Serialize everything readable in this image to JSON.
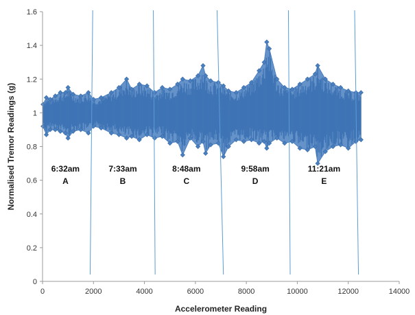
{
  "chart_data": {
    "type": "scatter",
    "title": "",
    "xlabel": "Accelerometer Reading",
    "ylabel": "Normalised Tremor Readings (g)",
    "xlim": [
      0,
      14000
    ],
    "ylim": [
      0,
      1.6
    ],
    "x_ticks": [
      0,
      2000,
      4000,
      6000,
      8000,
      10000,
      12000,
      14000
    ],
    "x_tick_labels": [
      "0",
      "2000",
      "4000",
      "6000",
      "8000",
      "10000",
      "12000",
      "14000"
    ],
    "y_ticks": [
      0,
      0.2,
      0.4,
      0.6,
      0.8,
      1.0,
      1.2,
      1.4,
      1.6
    ],
    "y_tick_labels": [
      "0",
      "0.2",
      "0.4",
      "0.6",
      "0.8",
      "1",
      "1.2",
      "1.4",
      "1.6"
    ],
    "grid": false,
    "series_color": "#4a7fbf",
    "divider_color": "#5b9bd5",
    "series": [
      {
        "x": [
          20,
          150,
          300,
          500,
          700,
          900,
          1000,
          1200,
          1500,
          1800,
          2000,
          2300,
          2700,
          3000,
          3300,
          3500,
          3800,
          4100,
          4400,
          4700,
          5000,
          5300,
          5500,
          5800,
          6100,
          6300,
          6400,
          6600,
          6900,
          7100,
          7300,
          7600,
          7900,
          8200,
          8500,
          8700,
          8800,
          8900,
          9200,
          9500,
          9800,
          10100,
          10400,
          10700,
          10800,
          11100,
          11400,
          11700,
          12000,
          12300,
          12500
        ],
        "y_max": [
          1.05,
          1.09,
          1.08,
          1.1,
          1.12,
          1.12,
          1.15,
          1.11,
          1.1,
          1.12,
          1.08,
          1.09,
          1.12,
          1.15,
          1.2,
          1.14,
          1.17,
          1.16,
          1.12,
          1.15,
          1.14,
          1.17,
          1.2,
          1.19,
          1.22,
          1.28,
          1.22,
          1.19,
          1.18,
          1.16,
          1.13,
          1.12,
          1.15,
          1.18,
          1.25,
          1.3,
          1.42,
          1.38,
          1.2,
          1.15,
          1.14,
          1.17,
          1.2,
          1.23,
          1.28,
          1.2,
          1.17,
          1.15,
          1.13,
          1.12,
          1.12
        ],
        "y_min": [
          0.92,
          0.87,
          0.9,
          0.9,
          0.89,
          0.88,
          0.85,
          0.89,
          0.9,
          0.88,
          0.92,
          0.91,
          0.88,
          0.87,
          0.85,
          0.86,
          0.84,
          0.87,
          0.85,
          0.86,
          0.82,
          0.83,
          0.75,
          0.85,
          0.8,
          0.83,
          0.76,
          0.81,
          0.82,
          0.74,
          0.8,
          0.84,
          0.83,
          0.84,
          0.82,
          0.83,
          0.79,
          0.82,
          0.85,
          0.82,
          0.83,
          0.79,
          0.78,
          0.8,
          0.7,
          0.77,
          0.8,
          0.81,
          0.79,
          0.83,
          0.84
        ]
      }
    ],
    "dividers": [
      {
        "x_top": 1970,
        "x_bottom": 1870
      },
      {
        "x_top": 4350,
        "x_bottom": 4420
      },
      {
        "x_top": 6850,
        "x_bottom": 7100
      },
      {
        "x_top": 9650,
        "x_bottom": 9720
      },
      {
        "x_top": 12250,
        "x_bottom": 12400
      }
    ],
    "annotations": [
      {
        "time": "6:32am",
        "letter": "A",
        "x": 900,
        "y": 0.7
      },
      {
        "time": "7:33am",
        "letter": "B",
        "x": 3150,
        "y": 0.7
      },
      {
        "time": "8:48am",
        "letter": "C",
        "x": 5650,
        "y": 0.7
      },
      {
        "time": "9:58am",
        "letter": "D",
        "x": 8350,
        "y": 0.7
      },
      {
        "time": "11:21am",
        "letter": "E",
        "x": 11050,
        "y": 0.7
      }
    ]
  }
}
